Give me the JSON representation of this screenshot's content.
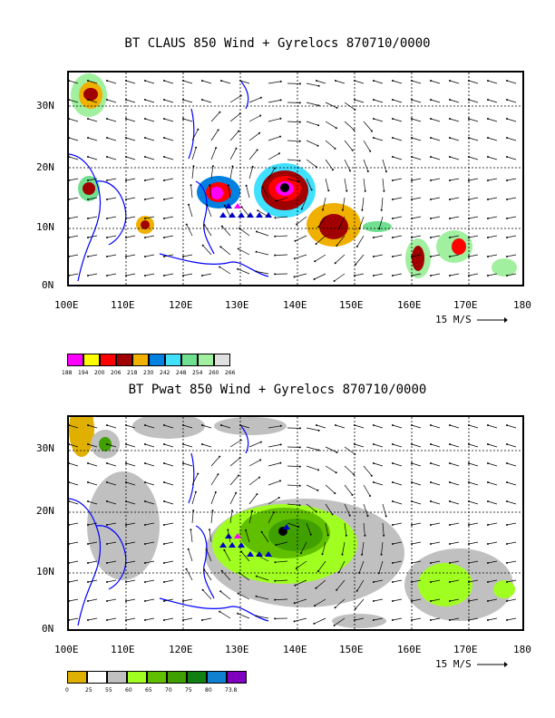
{
  "panels": [
    {
      "title": "BT CLAUS 850 Wind + Gyrelocs 870710/0000",
      "lat_labels": [
        "30N",
        "20N",
        "10N",
        "0N"
      ],
      "lon_labels": [
        "100E",
        "110E",
        "120E",
        "130E",
        "140E",
        "150E",
        "160E",
        "170E",
        "180"
      ],
      "scale_label": "15 M/S",
      "legend": {
        "colors": [
          "#ff00ff",
          "#ffff00",
          "#ff0000",
          "#a00000",
          "#f0b000",
          "#0080e0",
          "#40e0ff",
          "#70e090",
          "#a0f0a0",
          "#e0e0e0"
        ],
        "labels": [
          "188",
          "194",
          "200",
          "206",
          "218",
          "230",
          "242",
          "248",
          "254",
          "260",
          "266"
        ]
      }
    },
    {
      "title": "BT Pwat 850 Wind + Gyrelocs 870710/0000",
      "lat_labels": [
        "30N",
        "20N",
        "10N",
        "0N"
      ],
      "lon_labels": [
        "100E",
        "110E",
        "120E",
        "130E",
        "140E",
        "150E",
        "160E",
        "170E",
        "180"
      ],
      "scale_label": "15 M/S",
      "legend": {
        "colors": [
          "#e0b000",
          "#ffffff",
          "#c0c0c0",
          "#a0ff20",
          "#60c000",
          "#40a000",
          "#108010",
          "#1080d0",
          "#8000c0"
        ],
        "labels": [
          "0",
          "25",
          "55",
          "60",
          "65",
          "70",
          "75",
          "80",
          "73.8"
        ]
      }
    }
  ],
  "icons": {
    "gyre": "triangle-marker-icon",
    "center": "storm-center-icon"
  }
}
